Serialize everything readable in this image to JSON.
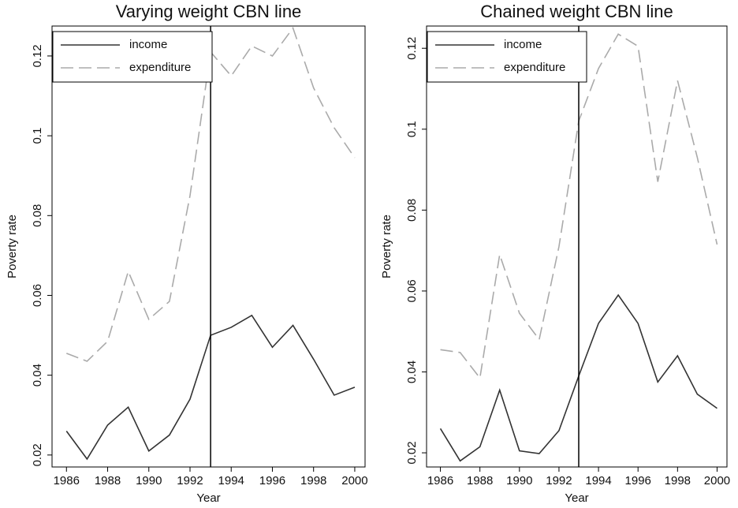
{
  "chart_data": [
    {
      "type": "line",
      "title": "Varying weight CBN line",
      "xlabel": "Year",
      "ylabel": "Poverty rate",
      "x": [
        1986,
        1987,
        1988,
        1989,
        1990,
        1991,
        1992,
        1993,
        1994,
        1995,
        1996,
        1997,
        1998,
        1999,
        2000
      ],
      "series": [
        {
          "name": "income",
          "color": "#333333",
          "dash": false,
          "values": [
            0.026,
            0.019,
            0.0275,
            0.032,
            0.021,
            0.025,
            0.034,
            0.05,
            0.052,
            0.055,
            0.047,
            0.0525,
            0.044,
            0.035,
            0.037
          ]
        },
        {
          "name": "expenditure",
          "color": "#aaaaaa",
          "dash": true,
          "values": [
            0.0455,
            0.0435,
            0.0485,
            0.066,
            0.054,
            0.0585,
            0.085,
            0.121,
            0.115,
            0.1225,
            0.12,
            0.127,
            0.112,
            0.102,
            0.0945
          ]
        }
      ],
      "vline": 1993,
      "xlim": [
        1985.3,
        2000.5
      ],
      "xticks": [
        1986,
        1988,
        1990,
        1992,
        1994,
        1996,
        1998,
        2000
      ],
      "ylim": [
        0.017,
        0.1275
      ],
      "yticks": [
        0.02,
        0.04,
        0.06,
        0.08,
        0.1,
        0.12
      ],
      "legend": "top-left",
      "grid": false
    },
    {
      "type": "line",
      "title": "Chained weight CBN line",
      "xlabel": "Year",
      "ylabel": "Poverty rate",
      "x": [
        1986,
        1987,
        1988,
        1989,
        1990,
        1991,
        1992,
        1993,
        1994,
        1995,
        1996,
        1997,
        1998,
        1999,
        2000
      ],
      "series": [
        {
          "name": "income",
          "color": "#333333",
          "dash": false,
          "values": [
            0.026,
            0.018,
            0.0215,
            0.0355,
            0.0205,
            0.0198,
            0.0255,
            0.039,
            0.052,
            0.059,
            0.052,
            0.0375,
            0.044,
            0.0345,
            0.031
          ]
        },
        {
          "name": "expenditure",
          "color": "#aaaaaa",
          "dash": true,
          "values": [
            0.0455,
            0.0448,
            0.0385,
            0.069,
            0.0545,
            0.048,
            0.071,
            0.102,
            0.115,
            0.1235,
            0.1205,
            0.087,
            0.112,
            0.093,
            0.0715
          ]
        }
      ],
      "vline": 1993,
      "xlim": [
        1985.3,
        2000.5
      ],
      "xticks": [
        1986,
        1988,
        1990,
        1992,
        1994,
        1996,
        1998,
        2000
      ],
      "ylim": [
        0.0165,
        0.1255
      ],
      "yticks": [
        0.02,
        0.04,
        0.06,
        0.08,
        0.1,
        0.12
      ],
      "legend": "top-left",
      "grid": false
    }
  ]
}
